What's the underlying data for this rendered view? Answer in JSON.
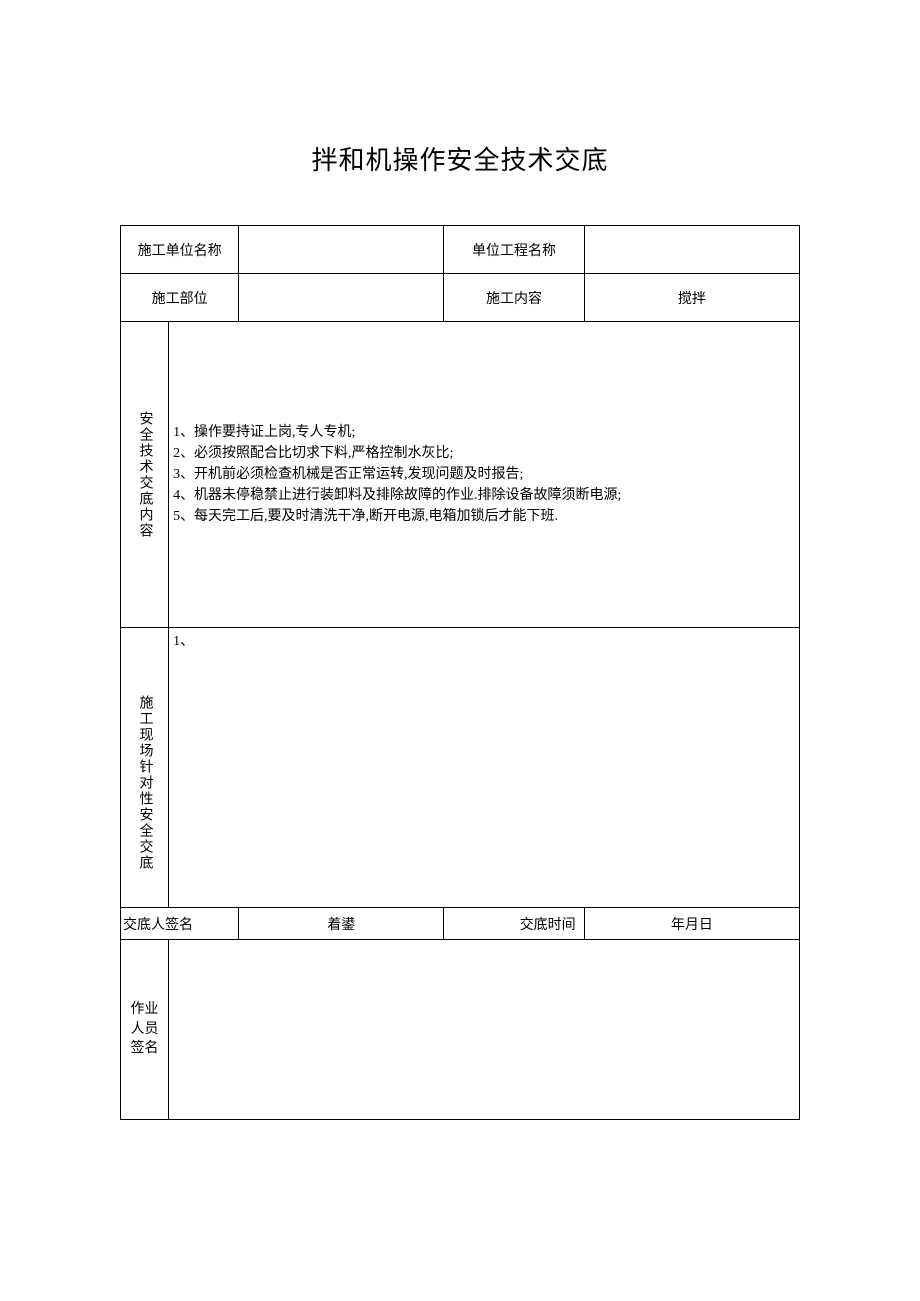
{
  "document": {
    "title": "拌和机操作安全技术交底",
    "background_color": "#ffffff",
    "border_color": "#000000",
    "text_color": "#000000",
    "title_fontsize": 26,
    "body_fontsize": 14
  },
  "header": {
    "row1": {
      "label1": "施工单位名称",
      "value1": "",
      "label2": "单位工程名称",
      "value2": ""
    },
    "row2": {
      "label1": "施工部位",
      "value1": "",
      "label2": "施工内容",
      "value2": "搅拌"
    }
  },
  "safety_content": {
    "label": "安全技术交底内容",
    "lines": [
      "1、操作要持证上岗,专人专机;",
      "2、必须按照配合比切求下料,严格控制水灰比;",
      "3、开机前必须检查机械是否正常运转,发现问题及时报告;",
      "4、机器未停稳禁止进行装卸料及排除故障的作业.排除设备故障须断电源;",
      "5、每天完工后,要及时清洗干净,断开电源,电箱加锁后才能下班."
    ]
  },
  "site_specific": {
    "label": "施工现场针对性安全交底",
    "content": "1、"
  },
  "signatures": {
    "submitter_label": "交底人签名",
    "submitter_value": "着鍙",
    "time_label": "交底时间",
    "time_value": "年月日",
    "worker_label": "作业人员签名",
    "worker_value": ""
  }
}
